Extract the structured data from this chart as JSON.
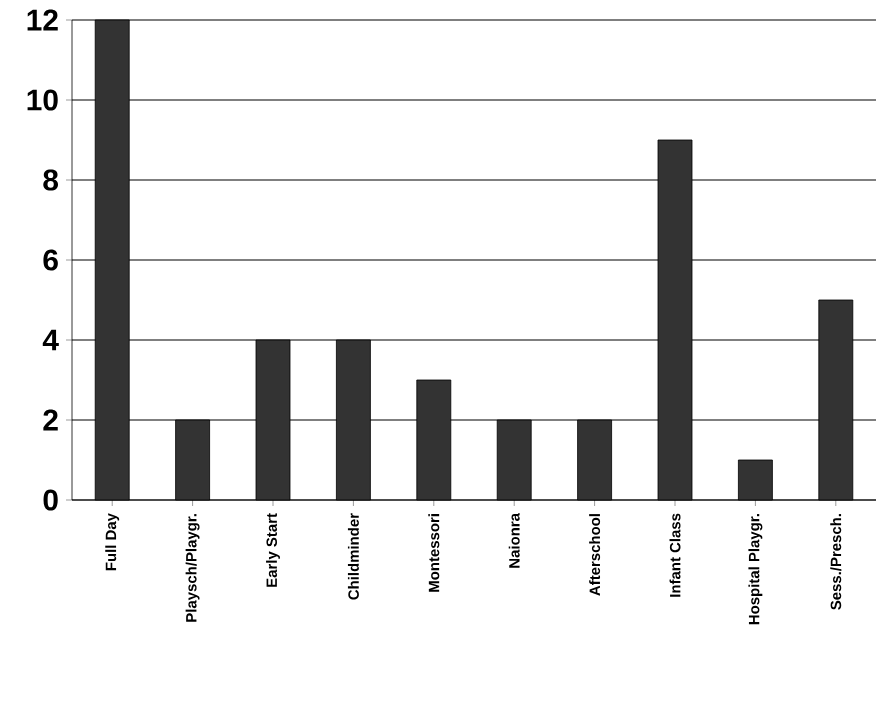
{
  "chart_data": {
    "type": "bar",
    "categories": [
      "Full Day",
      "Playsch/Playgr.",
      "Early Start",
      "Childminder",
      "Montessori",
      "Naionra",
      "Afterschool",
      "Infant Class",
      "Hospital Playgr.",
      "Sess./Presch."
    ],
    "values": [
      12,
      2,
      4,
      4,
      3,
      2,
      2,
      9,
      1,
      5
    ],
    "color": "#333333",
    "ylim": [
      0,
      12
    ],
    "yticks": [
      0,
      2,
      4,
      6,
      8,
      10,
      12
    ],
    "grid": "y"
  }
}
